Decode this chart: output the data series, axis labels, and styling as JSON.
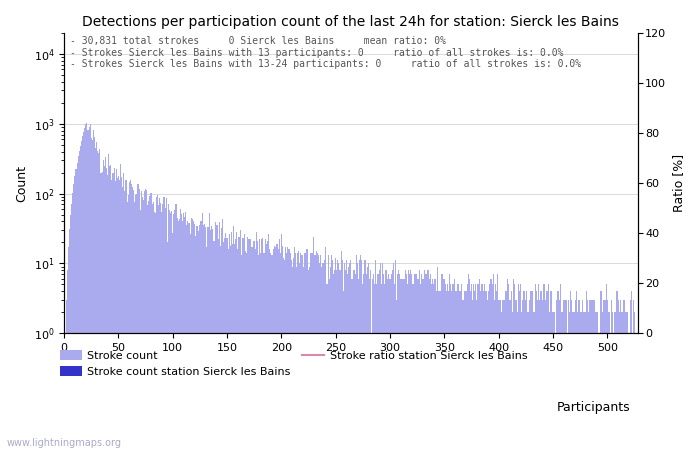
{
  "title": "Detections per participation count of the last 24h for station: Sierck les Bains",
  "annotation_lines": [
    "30,831 total strokes     0 Sierck les Bains     mean ratio: 0%",
    "Strokes Sierck les Bains with 13 participants: 0     ratio of all strokes is: 0.0%",
    "Strokes Sierck les Bains with 13-24 participants: 0     ratio of all strokes is: 0.0%"
  ],
  "xlabel": "Participants",
  "ylabel_left": "Count",
  "ylabel_right": "Ratio [%]",
  "xlim": [
    0,
    528
  ],
  "ylim_left": [
    1,
    20000
  ],
  "ylim_right": [
    0,
    120
  ],
  "yticks_right": [
    0,
    20,
    40,
    60,
    80,
    100,
    120
  ],
  "xticks": [
    0,
    50,
    100,
    150,
    200,
    250,
    300,
    350,
    400,
    450,
    500
  ],
  "bar_color_global": "#aaaaee",
  "bar_color_station": "#3333cc",
  "ratio_line_color": "#dd88aa",
  "legend_labels": [
    "Stroke count",
    "Stroke count station Sierck les Bains",
    "Stroke ratio station Sierck les Bains"
  ],
  "watermark": "www.lightningmaps.org",
  "watermark_color": "#aaaacc",
  "background_color": "#ffffff",
  "grid_color": "#cccccc",
  "title_fontsize": 10,
  "axis_fontsize": 9,
  "annotation_fontsize": 7,
  "legend_fontsize": 8
}
